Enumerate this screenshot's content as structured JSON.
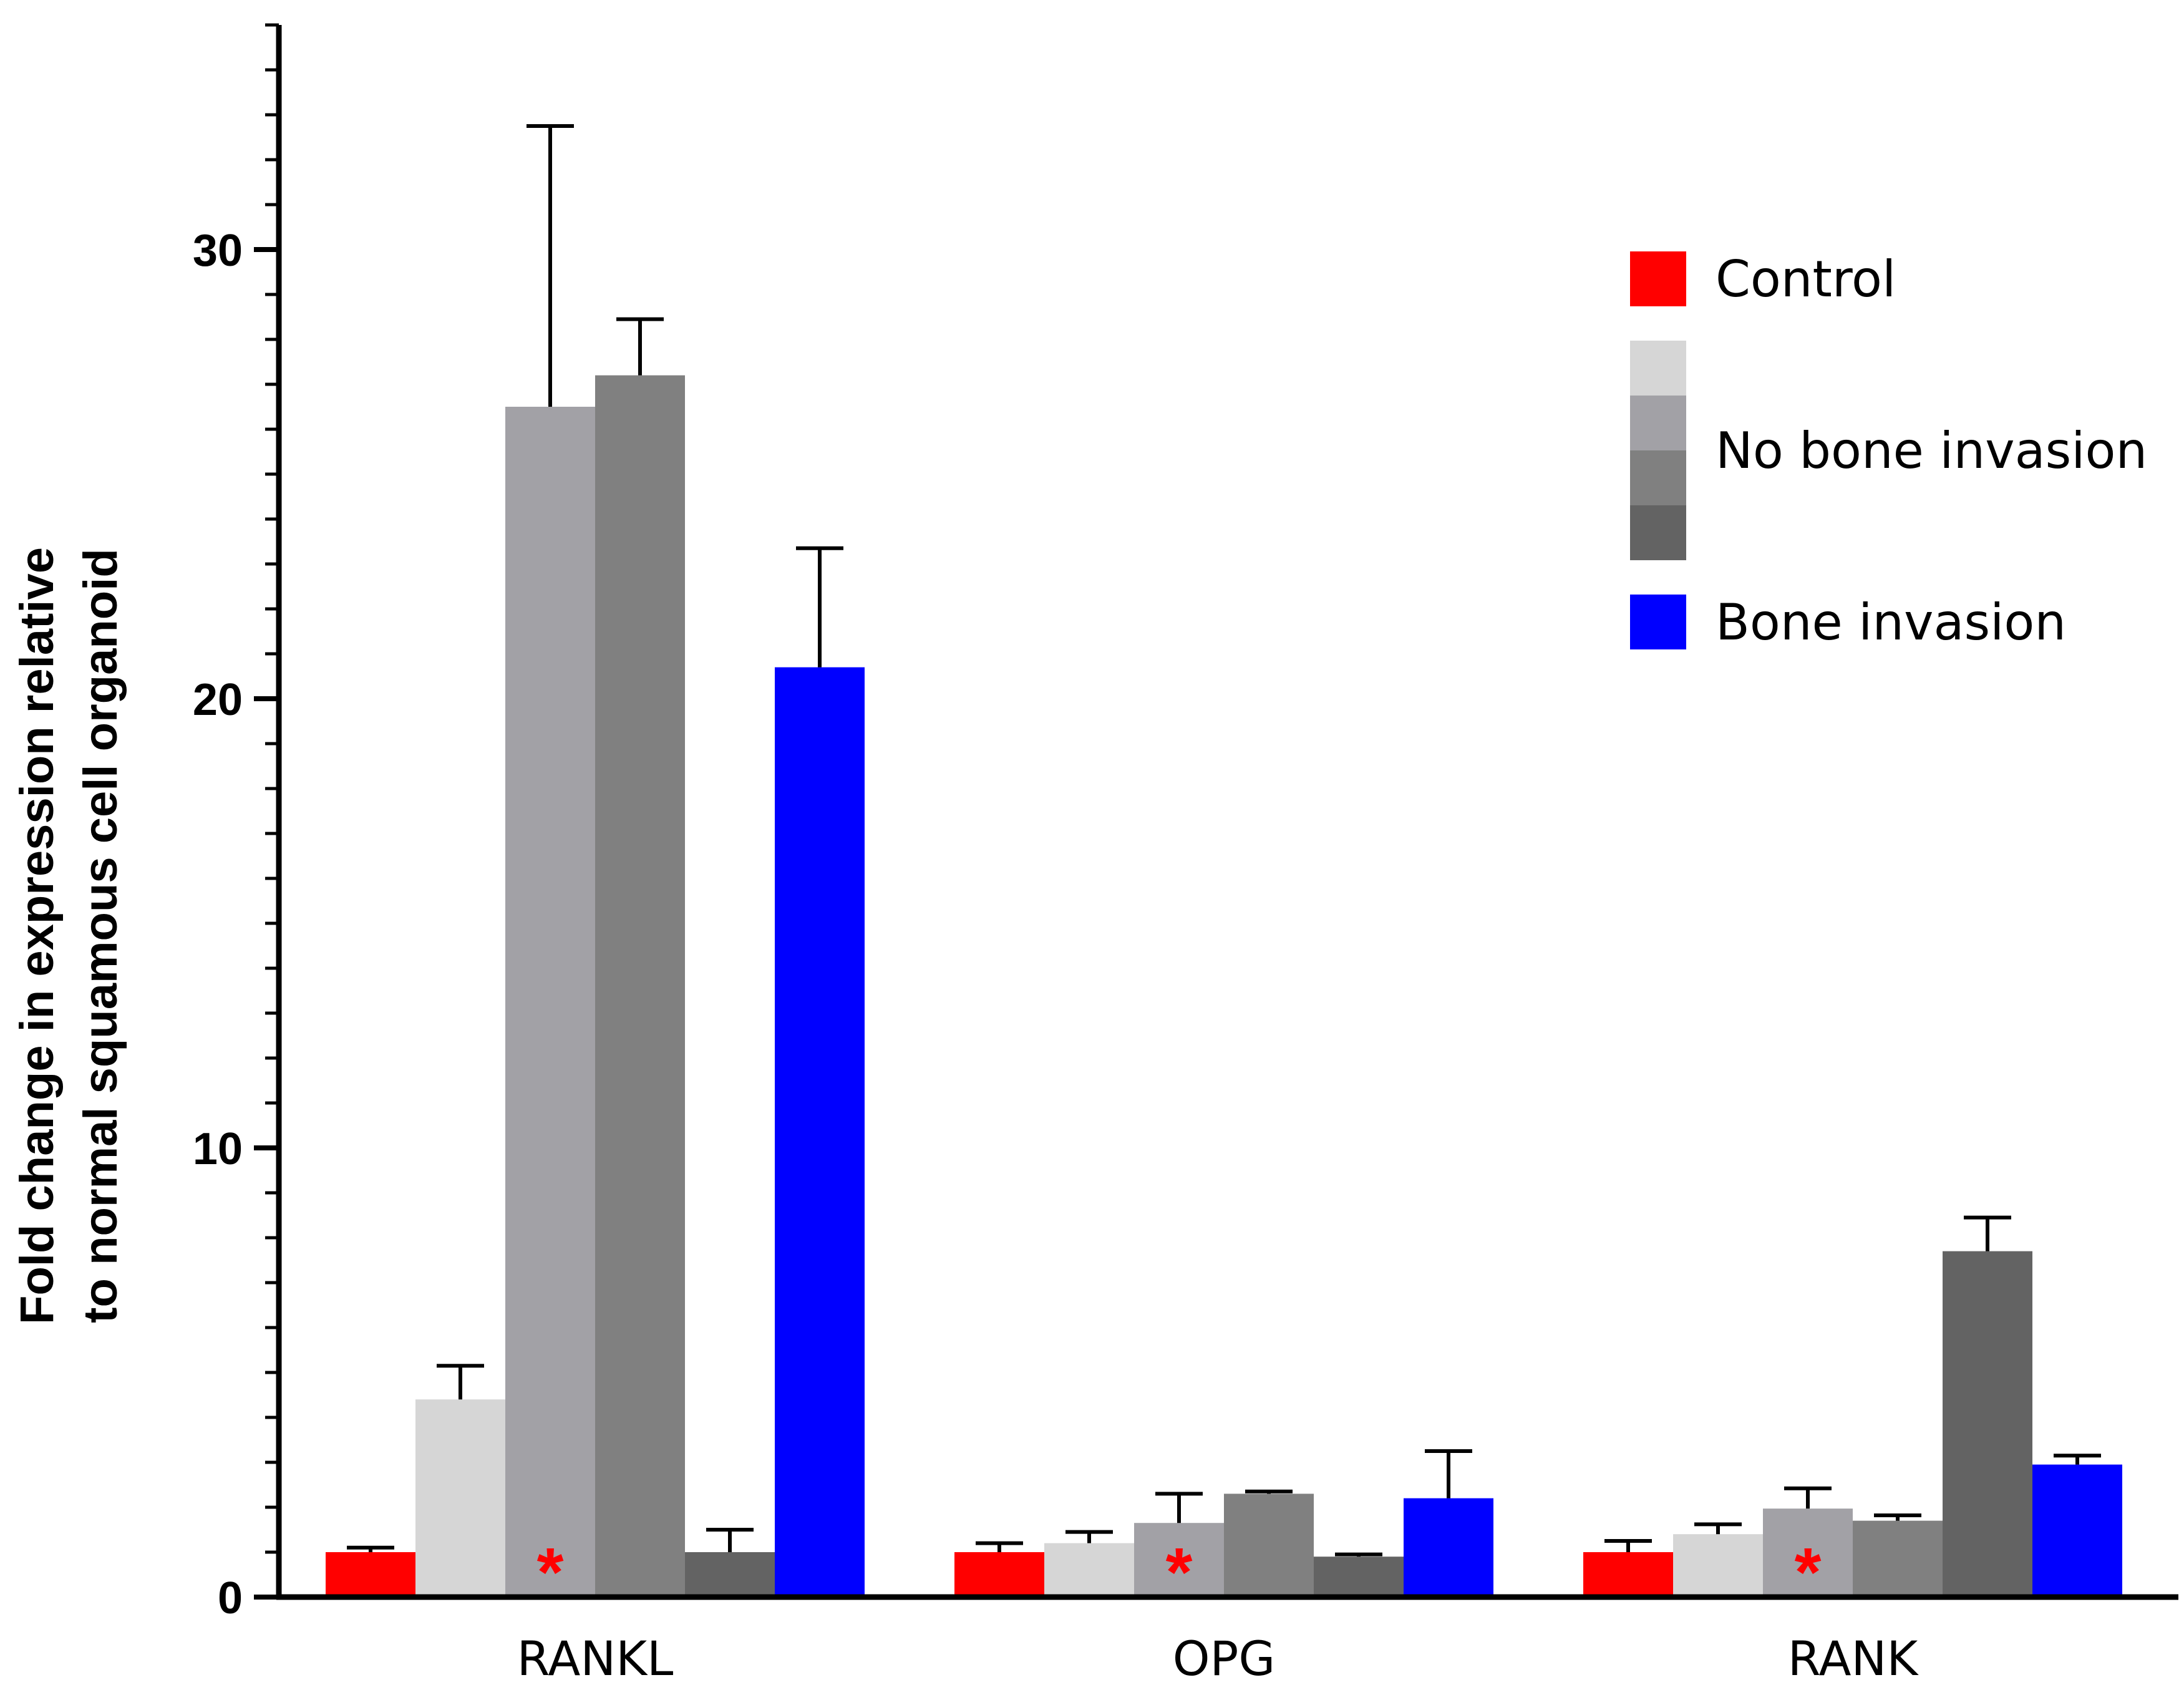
{
  "chart_data": {
    "type": "bar",
    "title": "",
    "xlabel": "",
    "ylabel_lines": [
      "Fold change in expression relative",
      "to normal squamous cell organoid"
    ],
    "ylim": [
      0,
      35
    ],
    "yticks": [
      0,
      10,
      20,
      30
    ],
    "minor_tick_step": 1,
    "grid": false,
    "categories": [
      "RANKL",
      "OPG",
      "RANK"
    ],
    "series": [
      {
        "name": "Control",
        "group": "Control",
        "color": "#ff0000",
        "values": [
          1.0,
          1.0,
          1.0
        ],
        "errors": [
          0.1,
          0.2,
          0.25
        ]
      },
      {
        "name": "No bone invasion 1",
        "group": "No bone invasion",
        "color": "#d6d6d6",
        "values": [
          4.4,
          1.2,
          1.4
        ],
        "errors": [
          0.75,
          0.25,
          0.22
        ]
      },
      {
        "name": "No bone invasion 2",
        "group": "No bone invasion",
        "color": "#a2a1a6",
        "values": [
          26.5,
          1.65,
          1.97
        ],
        "errors": [
          6.25,
          0.65,
          0.45
        ]
      },
      {
        "name": "No bone invasion 3",
        "group": "No bone invasion",
        "color": "#808080",
        "values": [
          27.2,
          2.3,
          1.7
        ],
        "errors": [
          1.25,
          0.05,
          0.12
        ]
      },
      {
        "name": "No bone invasion 4",
        "group": "No bone invasion",
        "color": "#636363",
        "values": [
          1.0,
          0.9,
          7.7
        ],
        "errors": [
          0.5,
          0.05,
          0.75
        ]
      },
      {
        "name": "Bone invasion",
        "group": "Bone invasion",
        "color": "#0000ff",
        "values": [
          20.7,
          2.2,
          2.95
        ],
        "errors": [
          2.65,
          1.05,
          0.2
        ]
      }
    ],
    "significance": [
      {
        "category": "RANKL",
        "series": "No bone invasion 2",
        "label": "*",
        "color": "#ff0000"
      },
      {
        "category": "OPG",
        "series": "No bone invasion 2",
        "label": "*",
        "color": "#ff0000"
      },
      {
        "category": "RANK",
        "series": "No bone invasion 2",
        "label": "*",
        "color": "#ff0000"
      }
    ],
    "legend": {
      "placement": "top-right",
      "entries": [
        {
          "label": "Control",
          "colors": [
            "#ff0000"
          ]
        },
        {
          "label": "No bone invasion",
          "colors": [
            "#d6d6d6",
            "#a2a1a6",
            "#808080",
            "#636363"
          ]
        },
        {
          "label": "Bone invasion",
          "colors": [
            "#0000ff"
          ]
        }
      ]
    }
  }
}
